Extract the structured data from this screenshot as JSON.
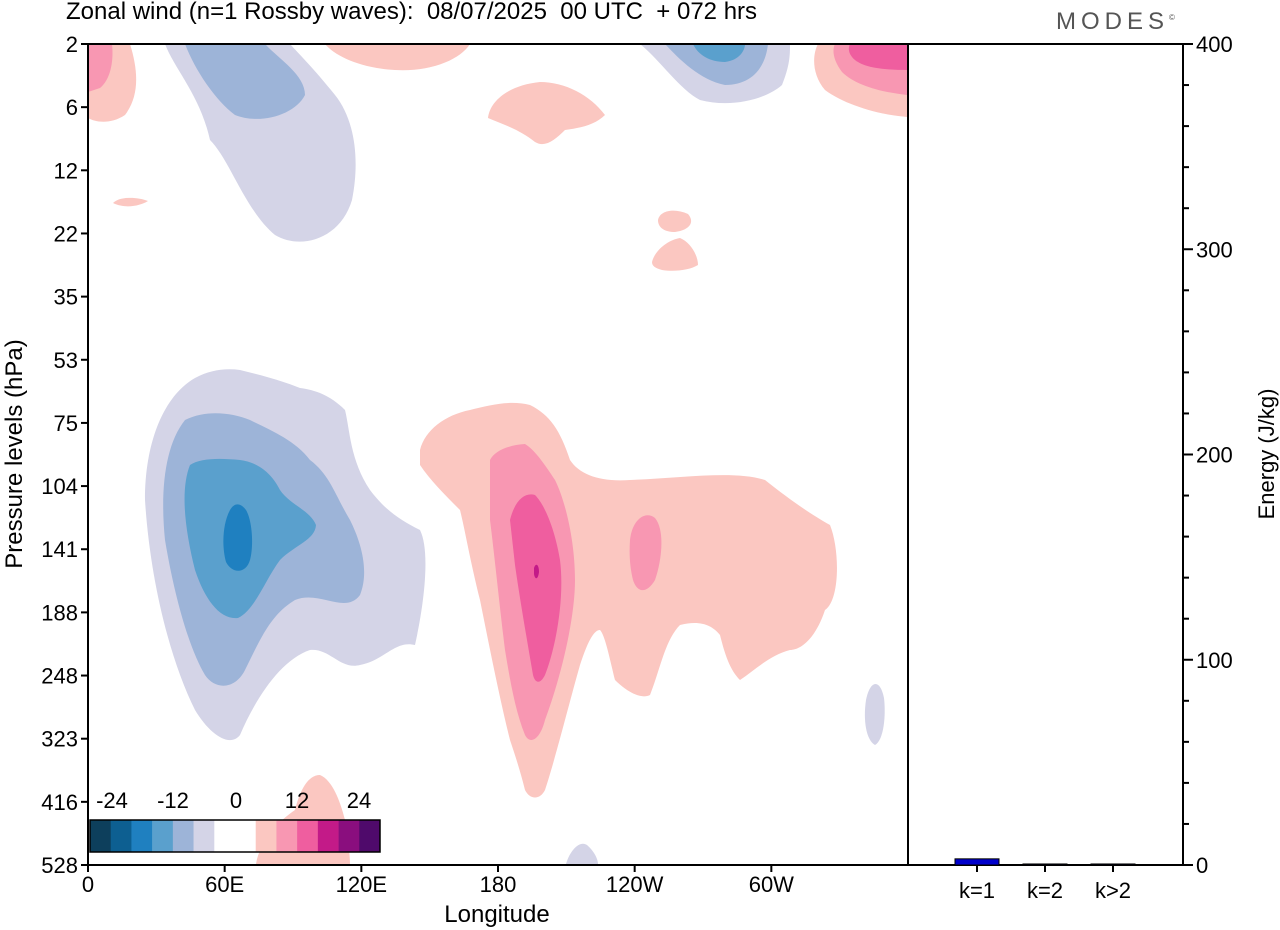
{
  "title": "Zonal wind (n=1 Rossby waves):  08/07/2025  00 UTC  + 072 hrs",
  "brand": "MODES",
  "brand_mark": "©",
  "chart_data": [
    {
      "type": "contour",
      "ylabel": "Pressure levels (hPa)",
      "xlabel": "Longitude",
      "y_ticks": [
        "2",
        "6",
        "12",
        "22",
        "35",
        "53",
        "75",
        "104",
        "141",
        "188",
        "248",
        "323",
        "416",
        "528"
      ],
      "x_ticks": [
        "0",
        "60E",
        "120E",
        "180",
        "120W",
        "60W"
      ],
      "ylim": [
        528,
        2
      ],
      "colorbar": {
        "labels": [
          "-24",
          "-12",
          "0",
          "12",
          "24"
        ],
        "levels": [
          -30,
          -27,
          -24,
          -21,
          -18,
          -15,
          -12,
          -9,
          -6,
          -3,
          0,
          3,
          6,
          9,
          12,
          15,
          18,
          21,
          24,
          27,
          30
        ],
        "colors": [
          "#0d3f5c",
          "#0d5f91",
          "#1f80c0",
          "#5aa0cd",
          "#9db4d8",
          "#d4d4e7",
          "#ffffff",
          "#ffffff",
          "#fbc7c1",
          "#f897b2",
          "#ef5e9f",
          "#c31a88",
          "#8a0e7e",
          "#4f0a6b"
        ]
      },
      "regions": [
        {
          "value": -4.5,
          "color": "#d4d4e7",
          "note": "upper-level negative anomaly near 60E"
        },
        {
          "value": -9,
          "color": "#9db4d8"
        },
        {
          "value": -13.5,
          "color": "#5aa0cd"
        },
        {
          "value": -18,
          "color": "#1f80c0"
        },
        {
          "value": 4.5,
          "color": "#fbc7c1",
          "note": "positive anomaly 180–60W"
        },
        {
          "value": 9,
          "color": "#f897b2"
        },
        {
          "value": 13.5,
          "color": "#ef5e9f"
        },
        {
          "value": 18,
          "color": "#c31a88"
        }
      ]
    },
    {
      "type": "bar",
      "categories": [
        "k=1",
        "k=2",
        "k>2"
      ],
      "values": [
        3,
        0.5,
        0.5
      ],
      "ylabel": "Energy (J/kg)",
      "ylim": [
        0,
        400
      ],
      "y_ticks": [
        "0",
        "100",
        "200",
        "300",
        "400"
      ],
      "color": "#0000cc"
    }
  ]
}
